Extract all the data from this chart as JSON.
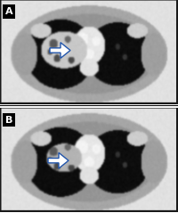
{
  "fig_width": 2.0,
  "fig_height": 2.39,
  "dpi": 100,
  "label_A": "A",
  "label_B": "B",
  "label_color": "#ffffff",
  "label_fontsize": 8,
  "background_color": "#ffffff",
  "separator_color": "#111111",
  "outer_bg": 0.88,
  "body_gray": 0.65,
  "lung_dark": 0.05,
  "mediastinum_bright": 0.95,
  "arrow_fc": "#ffffff",
  "arrow_ec": "#2255aa"
}
